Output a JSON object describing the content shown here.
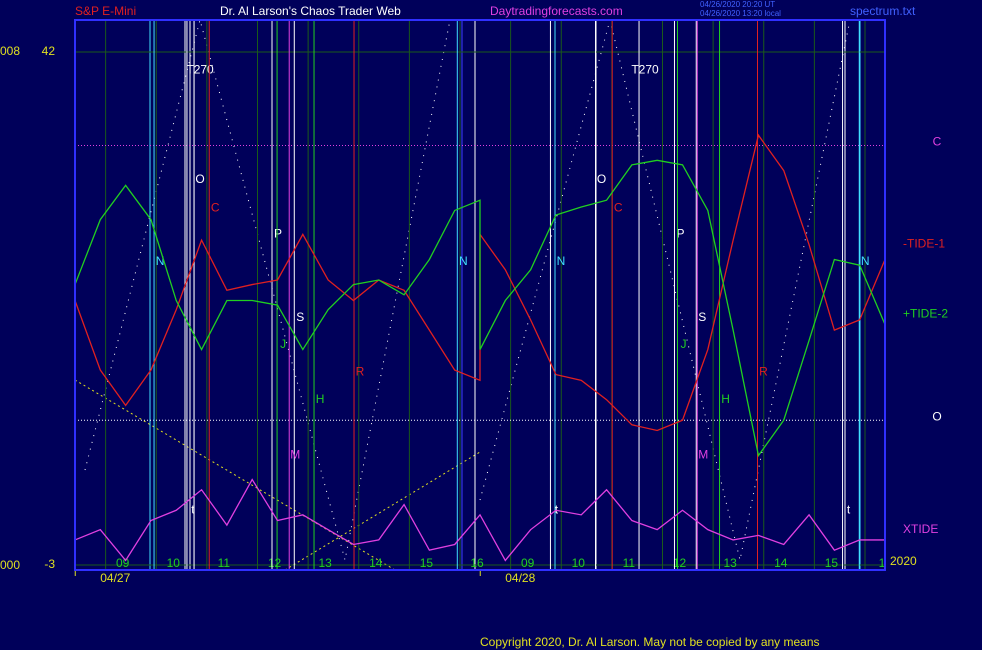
{
  "header": {
    "symbol": "S&P E-Mini",
    "site_title": "Dr. Al Larson's Chaos Trader Web",
    "site_url": "Daytradingforecasts.com",
    "time_ut": "04/26/2020 20:20 UT",
    "time_local": "04/26/2020 13:20 local",
    "file": "spectrum.txt"
  },
  "left_labels": [
    "008",
    "000"
  ],
  "footer": {
    "copyright": "Copyright 2020, Dr. Al Larson. May not be copied by any means"
  },
  "chart_data": {
    "type": "line",
    "x": [
      0,
      0.5,
      1,
      1.5,
      2,
      2.5,
      3,
      3.5,
      4,
      4.5,
      5,
      5.5,
      6,
      6.5,
      7,
      7.5,
      8,
      8,
      8.5,
      9,
      9.5,
      10,
      10.5,
      11,
      11.5,
      12,
      12.5,
      13,
      13.5,
      14,
      14.5,
      15,
      15.5,
      16
    ],
    "xlim": [
      0,
      16
    ],
    "xticks": [
      {
        "value": 1,
        "label": "09"
      },
      {
        "value": 2,
        "label": "10"
      },
      {
        "value": 3,
        "label": "11"
      },
      {
        "value": 4,
        "label": "12"
      },
      {
        "value": 5,
        "label": "13"
      },
      {
        "value": 6,
        "label": "14"
      },
      {
        "value": 7,
        "label": "15"
      },
      {
        "value": 8,
        "label": "16"
      },
      {
        "value": 9,
        "label": "09"
      },
      {
        "value": 10,
        "label": "10"
      },
      {
        "value": 11,
        "label": "11"
      },
      {
        "value": 12,
        "label": "12"
      },
      {
        "value": 13,
        "label": "13"
      },
      {
        "value": 14,
        "label": "14"
      },
      {
        "value": 15,
        "label": "15"
      },
      {
        "value": 16,
        "label": "1"
      }
    ],
    "dates": [
      {
        "value": 0.4,
        "label": "04/27"
      },
      {
        "value": 8.4,
        "label": "04/28"
      }
    ],
    "year": "2020",
    "ylim": [
      -3,
      42
    ],
    "yticks": [
      -3,
      42
    ],
    "grid": true,
    "series": [
      {
        "name": "-TIDE-1",
        "color": "#e02020",
        "values": [
          20.2,
          14.1,
          11.0,
          14.1,
          19.4,
          25.5,
          21.1,
          21.6,
          22.0,
          26.0,
          22.0,
          20.2,
          22.0,
          21.1,
          17.6,
          14.1,
          13.2,
          26.0,
          22.9,
          18.5,
          13.7,
          13.2,
          11.5,
          9.3,
          8.8,
          9.7,
          15.9,
          25.5,
          34.7,
          31.6,
          25.1,
          17.6,
          18.5,
          23.8
        ]
      },
      {
        "name": "+TIDE-2",
        "color": "#20d020",
        "values": [
          21.6,
          27.3,
          30.3,
          27.3,
          20.2,
          15.9,
          20.2,
          20.2,
          19.8,
          15.9,
          19.4,
          21.6,
          22.0,
          20.7,
          23.8,
          28.1,
          29.0,
          15.9,
          20.2,
          22.9,
          27.7,
          28.4,
          29.0,
          32.1,
          32.5,
          32.1,
          28.1,
          17.6,
          6.6,
          9.7,
          16.7,
          23.8,
          23.3,
          18.1
        ]
      },
      {
        "name": "XTIDE",
        "color": "#e040e0",
        "values": [
          -0.8,
          0.1,
          -2.6,
          0.9,
          1.8,
          3.6,
          0.5,
          4.5,
          0.9,
          1.4,
          0.1,
          -1.2,
          -0.8,
          2.3,
          -1.7,
          -1.2,
          1.4,
          1.4,
          -2.6,
          0.1,
          1.8,
          1.4,
          3.6,
          0.9,
          0.1,
          1.8,
          0.1,
          -0.8,
          -0.4,
          -1.2,
          1.4,
          -1.7,
          -0.8,
          -0.8
        ]
      }
    ],
    "levels": [
      {
        "label": "C",
        "value": 33.8,
        "color": "#e040e0"
      },
      {
        "label": "O",
        "value": 9.7,
        "color": "#ffffff"
      }
    ],
    "events": [
      {
        "label": "T270",
        "x": 2.47,
        "y": 40.4,
        "color": "#ffffff"
      },
      {
        "label": "O",
        "x": 2.47,
        "y": 30.8,
        "color": "#ffffff"
      },
      {
        "label": "C",
        "x": 2.77,
        "y": 28.3,
        "color": "#e02020"
      },
      {
        "label": "P",
        "x": 4.01,
        "y": 26.0,
        "color": "#ffffff"
      },
      {
        "label": "N",
        "x": 1.68,
        "y": 23.6,
        "color": "#40e0ff"
      },
      {
        "label": "J",
        "x": 4.11,
        "y": 16.3,
        "color": "#20d020"
      },
      {
        "label": "S",
        "x": 4.45,
        "y": 18.7,
        "color": "#ffffff"
      },
      {
        "label": "M",
        "x": 4.35,
        "y": 6.6,
        "color": "#e040e0"
      },
      {
        "label": "H",
        "x": 4.84,
        "y": 11.5,
        "color": "#20d020"
      },
      {
        "label": "R",
        "x": 5.63,
        "y": 13.9,
        "color": "#e02020"
      },
      {
        "label": "N",
        "x": 7.67,
        "y": 23.6,
        "color": "#40e0ff"
      },
      {
        "label": "t",
        "x": 2.33,
        "y": 1.8,
        "color": "#ffffff"
      },
      {
        "label": "T270",
        "x": 11.26,
        "y": 40.4,
        "color": "#ffffff"
      },
      {
        "label": "O",
        "x": 10.4,
        "y": 30.8,
        "color": "#ffffff"
      },
      {
        "label": "C",
        "x": 10.73,
        "y": 28.3,
        "color": "#e02020"
      },
      {
        "label": "P",
        "x": 11.96,
        "y": 26.0,
        "color": "#ffffff"
      },
      {
        "label": "N",
        "x": 9.6,
        "y": 23.6,
        "color": "#40e0ff"
      },
      {
        "label": "J",
        "x": 12.02,
        "y": 16.3,
        "color": "#20d020"
      },
      {
        "label": "S",
        "x": 12.39,
        "y": 18.7,
        "color": "#ffffff"
      },
      {
        "label": "M",
        "x": 12.41,
        "y": 6.6,
        "color": "#e040e0"
      },
      {
        "label": "H",
        "x": 12.85,
        "y": 11.5,
        "color": "#20d020"
      },
      {
        "label": "R",
        "x": 13.6,
        "y": 13.9,
        "color": "#e02020"
      },
      {
        "label": "N",
        "x": 15.61,
        "y": 23.6,
        "color": "#40e0ff"
      },
      {
        "label": "t",
        "x": 9.51,
        "y": 1.8,
        "color": "#ffffff"
      },
      {
        "label": "t",
        "x": 15.28,
        "y": 1.8,
        "color": "#ffffff"
      }
    ]
  }
}
